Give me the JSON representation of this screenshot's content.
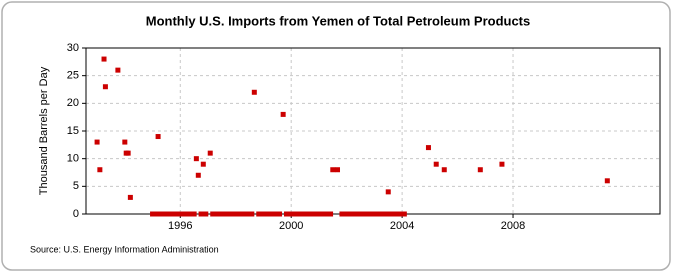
{
  "chart_data": {
    "type": "scatter",
    "title": "Monthly U.S. Imports from Yemen of Total Petroleum Products",
    "y_label": "Thousand Barrels per Day",
    "source": "Source: U.S. Energy Information Administration",
    "xlim": [
      1992.6,
      2013.3
    ],
    "xticks": [
      1996,
      2000,
      2004,
      2008
    ],
    "ylim": [
      0,
      30
    ],
    "yticks": [
      0,
      5,
      10,
      15,
      20,
      25,
      30
    ],
    "grid": true,
    "series": [
      {
        "color": "#cc0000",
        "x": [
          1993.0,
          1993.1,
          1993.25,
          1993.3,
          1993.75,
          1994.0,
          1994.05,
          1994.12,
          1994.2,
          1995.2,
          1996.58,
          1996.65,
          1996.83,
          1997.08,
          1998.67,
          1999.71,
          2001.5,
          2001.67,
          2003.5,
          2004.95,
          2005.23,
          2005.52,
          2006.82,
          2007.6,
          2011.4,
          1995.0,
          1995.08,
          1995.17,
          1995.25,
          1995.33,
          1995.42,
          1995.5,
          1995.58,
          1995.67,
          1995.75,
          1995.83,
          1995.92,
          1996.0,
          1996.08,
          1996.17,
          1996.25,
          1996.33,
          1996.42,
          1996.5,
          1996.75,
          1996.92,
          1997.17,
          1997.25,
          1997.33,
          1997.42,
          1997.5,
          1997.58,
          1997.67,
          1997.75,
          1997.83,
          1997.92,
          1998.0,
          1998.08,
          1998.17,
          1998.25,
          1998.33,
          1998.42,
          1998.5,
          1998.58,
          1998.83,
          1998.92,
          1999.0,
          1999.08,
          1999.17,
          1999.25,
          1999.33,
          1999.42,
          1999.5,
          1999.58,
          1999.83,
          1999.92,
          2000.0,
          2000.08,
          2000.17,
          2000.25,
          2000.33,
          2000.42,
          2000.5,
          2000.58,
          2000.67,
          2000.75,
          2000.83,
          2000.92,
          2001.0,
          2001.08,
          2001.17,
          2001.25,
          2001.33,
          2001.42,
          2001.83,
          2001.92,
          2002.0,
          2002.08,
          2002.17,
          2002.25,
          2002.33,
          2002.42,
          2002.5,
          2002.58,
          2002.67,
          2002.75,
          2002.83,
          2002.92,
          2003.0,
          2003.08,
          2003.17,
          2003.25,
          2003.33,
          2003.42,
          2003.58,
          2003.67,
          2003.75,
          2003.83,
          2003.92,
          2004.0,
          2004.08
        ],
        "values": [
          13,
          8,
          28,
          23,
          26,
          13,
          11,
          11,
          3,
          14,
          10,
          7,
          9,
          11,
          22,
          18,
          8,
          8,
          4,
          12,
          9,
          8,
          8,
          9,
          6,
          0,
          0,
          0,
          0,
          0,
          0,
          0,
          0,
          0,
          0,
          0,
          0,
          0,
          0,
          0,
          0,
          0,
          0,
          0,
          0,
          0,
          0,
          0,
          0,
          0,
          0,
          0,
          0,
          0,
          0,
          0,
          0,
          0,
          0,
          0,
          0,
          0,
          0,
          0,
          0,
          0,
          0,
          0,
          0,
          0,
          0,
          0,
          0,
          0,
          0,
          0,
          0,
          0,
          0,
          0,
          0,
          0,
          0,
          0,
          0,
          0,
          0,
          0,
          0,
          0,
          0,
          0,
          0,
          0,
          0,
          0,
          0,
          0,
          0,
          0,
          0,
          0,
          0,
          0,
          0,
          0,
          0,
          0,
          0,
          0,
          0,
          0,
          0,
          0,
          0,
          0,
          0,
          0,
          0,
          0,
          0
        ]
      }
    ]
  }
}
